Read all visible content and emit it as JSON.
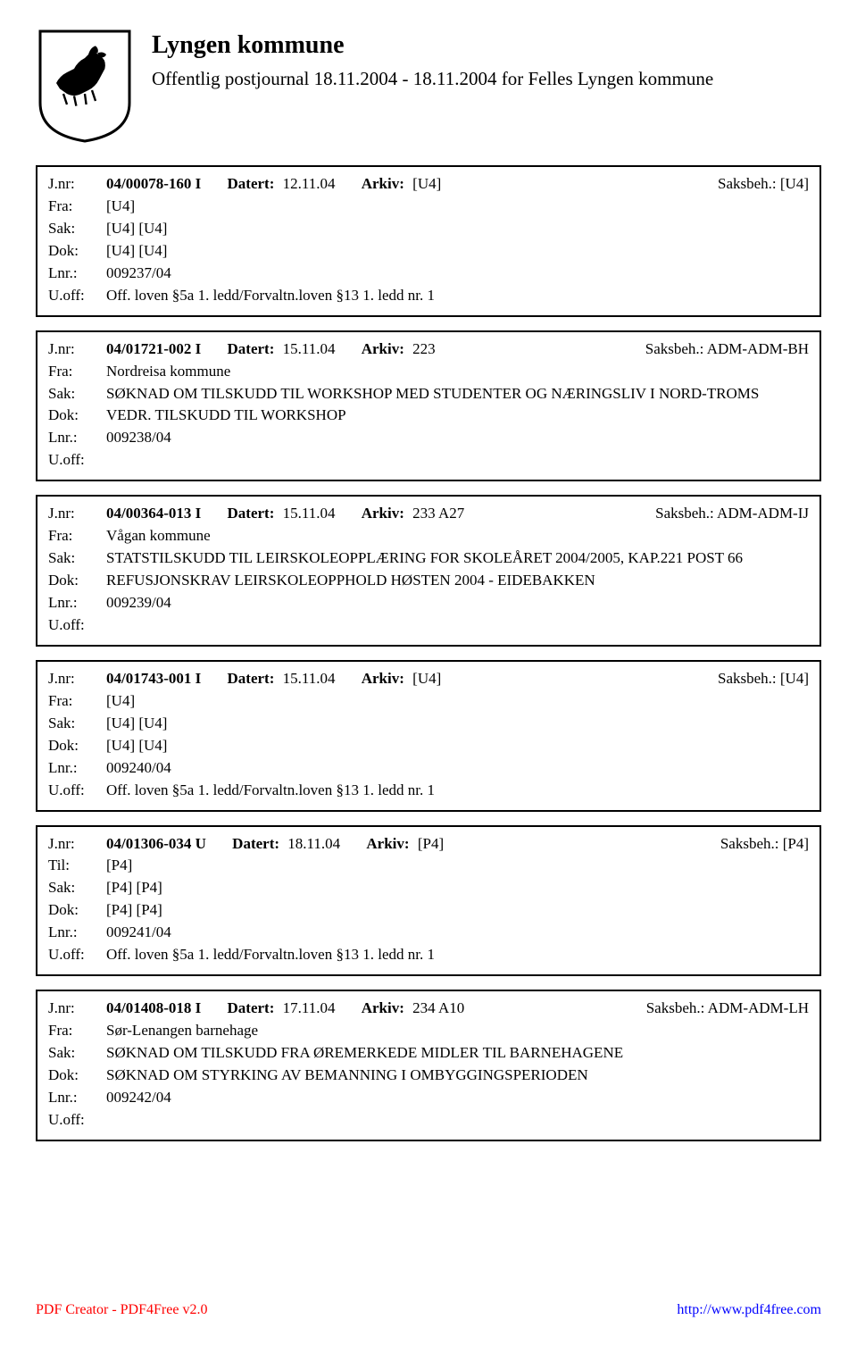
{
  "header": {
    "title": "Lyngen kommune",
    "subtitle": "Offentlig postjournal 18.11.2004 - 18.11.2004 for Felles Lyngen kommune"
  },
  "entries": [
    {
      "jnr_label": "J.nr:",
      "jnr": "04/00078-160 I",
      "datert_label": "Datert:",
      "datert": "12.11.04",
      "arkiv_label": "Arkiv:",
      "arkiv": "[U4]",
      "saksbeh_label": "Saksbeh.:",
      "saksbeh": "[U4]",
      "fra_label": "Fra:",
      "fra": "[U4]",
      "sak_label": "Sak:",
      "sak": "[U4] [U4]",
      "dok_label": "Dok:",
      "dok": "[U4] [U4]",
      "lnr_label": "Lnr.:",
      "lnr": "009237/04",
      "uoff_label": "U.off:",
      "uoff": "Off. loven §5a 1. ledd/Forvaltn.loven §13 1. ledd nr. 1"
    },
    {
      "jnr_label": "J.nr:",
      "jnr": "04/01721-002 I",
      "datert_label": "Datert:",
      "datert": "15.11.04",
      "arkiv_label": "Arkiv:",
      "arkiv": "223",
      "saksbeh_label": "Saksbeh.:",
      "saksbeh": "ADM-ADM-BH",
      "fra_label": "Fra:",
      "fra": "Nordreisa kommune",
      "sak_label": "Sak:",
      "sak": "SØKNAD OM TILSKUDD TIL WORKSHOP MED STUDENTER OG NÆRINGSLIV I NORD-TROMS",
      "dok_label": "Dok:",
      "dok": "VEDR. TILSKUDD TIL WORKSHOP",
      "lnr_label": "Lnr.:",
      "lnr": "009238/04",
      "uoff_label": "U.off:",
      "uoff": ""
    },
    {
      "jnr_label": "J.nr:",
      "jnr": "04/00364-013 I",
      "datert_label": "Datert:",
      "datert": "15.11.04",
      "arkiv_label": "Arkiv:",
      "arkiv": "233 A27",
      "saksbeh_label": "Saksbeh.:",
      "saksbeh": "ADM-ADM-IJ",
      "fra_label": "Fra:",
      "fra": "Vågan kommune",
      "sak_label": "Sak:",
      "sak": "STATSTILSKUDD TIL LEIRSKOLEOPPLÆRING FOR SKOLEÅRET 2004/2005, KAP.221 POST 66",
      "dok_label": "Dok:",
      "dok": "REFUSJONSKRAV LEIRSKOLEOPPHOLD HØSTEN 2004 - EIDEBAKKEN",
      "lnr_label": "Lnr.:",
      "lnr": "009239/04",
      "uoff_label": "U.off:",
      "uoff": ""
    },
    {
      "jnr_label": "J.nr:",
      "jnr": "04/01743-001 I",
      "datert_label": "Datert:",
      "datert": "15.11.04",
      "arkiv_label": "Arkiv:",
      "arkiv": "[U4]",
      "saksbeh_label": "Saksbeh.:",
      "saksbeh": "[U4]",
      "fra_label": "Fra:",
      "fra": "[U4]",
      "sak_label": "Sak:",
      "sak": "[U4] [U4]",
      "dok_label": "Dok:",
      "dok": "[U4] [U4]",
      "lnr_label": "Lnr.:",
      "lnr": "009240/04",
      "uoff_label": "U.off:",
      "uoff": "Off. loven §5a 1. ledd/Forvaltn.loven §13 1. ledd nr. 1"
    },
    {
      "jnr_label": "J.nr:",
      "jnr": "04/01306-034 U",
      "datert_label": "Datert:",
      "datert": "18.11.04",
      "arkiv_label": "Arkiv:",
      "arkiv": "[P4]",
      "saksbeh_label": "Saksbeh.:",
      "saksbeh": "[P4]",
      "fra_label": "Til:",
      "fra": "[P4]",
      "sak_label": "Sak:",
      "sak": "[P4] [P4]",
      "dok_label": "Dok:",
      "dok": "[P4] [P4]",
      "lnr_label": "Lnr.:",
      "lnr": "009241/04",
      "uoff_label": "U.off:",
      "uoff": "Off. loven §5a 1. ledd/Forvaltn.loven §13 1. ledd nr. 1"
    },
    {
      "jnr_label": "J.nr:",
      "jnr": "04/01408-018 I",
      "datert_label": "Datert:",
      "datert": "17.11.04",
      "arkiv_label": "Arkiv:",
      "arkiv": "234 A10",
      "saksbeh_label": "Saksbeh.:",
      "saksbeh": "ADM-ADM-LH",
      "fra_label": "Fra:",
      "fra": "Sør-Lenangen barnehage",
      "sak_label": "Sak:",
      "sak": "SØKNAD OM TILSKUDD FRA ØREMERKEDE MIDLER TIL BARNEHAGENE",
      "dok_label": "Dok:",
      "dok": "SØKNAD OM STYRKING AV BEMANNING I OMBYGGINGSPERIODEN",
      "lnr_label": "Lnr.:",
      "lnr": "009242/04",
      "uoff_label": "U.off:",
      "uoff": ""
    }
  ],
  "footer": {
    "left": "PDF Creator - PDF4Free v2.0",
    "right": "http://www.pdf4free.com"
  }
}
